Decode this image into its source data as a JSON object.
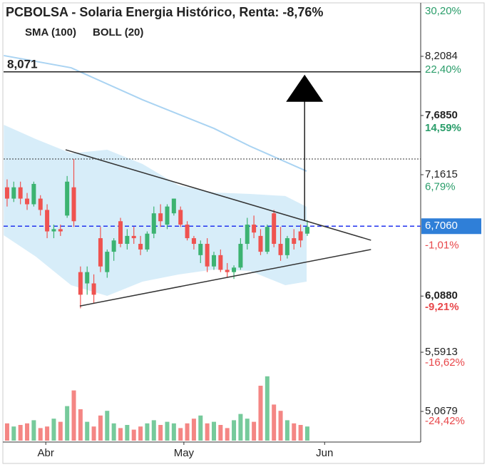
{
  "chart_data": {
    "type": "candlestick",
    "title": "PCBOLSA - Solaria Energia Histórico, Renta: -8,76%",
    "x": [
      0,
      1,
      2,
      3,
      4,
      5,
      6,
      7,
      8,
      9,
      10,
      11,
      12,
      13,
      14,
      15,
      16,
      17,
      18,
      19,
      20,
      21,
      22,
      23,
      24,
      25,
      26,
      27,
      28,
      29,
      30,
      31,
      32,
      33,
      34,
      35,
      36,
      37,
      38,
      39,
      40,
      41,
      42,
      43,
      44,
      45
    ],
    "open": [
      7.05,
      6.95,
      7.05,
      6.95,
      6.9,
      6.95,
      6.85,
      6.66,
      6.68,
      6.8,
      7.05,
      6.3,
      6.2,
      6.2,
      6.6,
      6.3,
      6.48,
      6.75,
      6.55,
      6.62,
      6.55,
      6.5,
      6.64,
      6.82,
      6.72,
      6.82,
      6.85,
      6.72,
      6.6,
      6.45,
      6.55,
      6.35,
      6.45,
      6.32,
      6.3,
      6.34,
      6.55,
      6.72,
      6.62,
      6.48,
      6.82,
      6.55,
      6.45,
      6.6,
      6.66,
      6.64
    ],
    "high": [
      7.12,
      7.1,
      7.1,
      7.0,
      7.1,
      6.98,
      6.9,
      6.72,
      6.72,
      7.15,
      7.3,
      6.35,
      6.35,
      6.28,
      6.7,
      6.5,
      6.6,
      6.78,
      6.68,
      6.7,
      6.62,
      6.66,
      6.88,
      6.9,
      6.9,
      6.95,
      6.88,
      6.75,
      6.62,
      6.58,
      6.6,
      6.48,
      6.5,
      6.38,
      6.36,
      6.6,
      6.78,
      6.8,
      6.68,
      6.72,
      6.85,
      6.7,
      6.62,
      6.68,
      6.72,
      6.76
    ],
    "low": [
      6.88,
      6.92,
      6.9,
      6.85,
      6.88,
      6.8,
      6.6,
      6.6,
      6.62,
      6.78,
      6.7,
      5.98,
      6.1,
      6.02,
      6.3,
      6.25,
      6.4,
      6.52,
      6.5,
      6.55,
      6.45,
      6.48,
      6.6,
      6.7,
      6.68,
      6.8,
      6.7,
      6.58,
      6.5,
      6.38,
      6.3,
      6.32,
      6.3,
      6.25,
      6.24,
      6.32,
      6.5,
      6.6,
      6.45,
      6.46,
      6.52,
      6.4,
      6.42,
      6.5,
      6.52,
      6.62
    ],
    "close": [
      6.95,
      7.05,
      6.95,
      6.9,
      7.08,
      6.85,
      6.66,
      6.68,
      6.66,
      7.1,
      6.75,
      6.1,
      6.3,
      6.1,
      6.35,
      6.48,
      6.58,
      6.55,
      6.62,
      6.6,
      6.5,
      6.64,
      6.82,
      6.75,
      6.88,
      6.95,
      6.72,
      6.6,
      6.55,
      6.55,
      6.35,
      6.45,
      6.32,
      6.3,
      6.34,
      6.55,
      6.72,
      6.65,
      6.48,
      6.7,
      6.55,
      6.45,
      6.6,
      6.55,
      6.58,
      6.7
    ],
    "up_color": "#3cb371",
    "down_color": "#ef5350",
    "volume": {
      "values": [
        22,
        18,
        20,
        22,
        26,
        16,
        18,
        28,
        24,
        44,
        64,
        40,
        24,
        18,
        32,
        38,
        22,
        16,
        20,
        14,
        18,
        22,
        26,
        20,
        24,
        22,
        16,
        22,
        28,
        32,
        22,
        24,
        20,
        16,
        26,
        34,
        28,
        24,
        70,
        82,
        46,
        38,
        26,
        22,
        20,
        18
      ],
      "ylim": [
        0,
        100
      ]
    },
    "sma": {
      "name": "SMA (100)",
      "color": "#a9d3f2",
      "x": [
        -0.5,
        9.6,
        20.3,
        31,
        36.4,
        44.9
      ],
      "values": [
        8.215,
        8.107,
        7.824,
        7.571,
        7.414,
        7.193
      ]
    },
    "boll": {
      "name": "BOLL (20)",
      "color": "#cde8f8",
      "legend_color": "#cccccc",
      "x": [
        -0.5,
        4.3,
        9.6,
        15,
        20.3,
        25.7,
        31,
        36.4,
        41.7,
        44.9
      ],
      "upper": [
        7.603,
        7.477,
        7.351,
        7.382,
        7.256,
        7.067,
        7.004,
        6.991,
        6.973,
        6.878
      ],
      "lower": [
        6.626,
        6.437,
        6.184,
        6.09,
        6.216,
        6.279,
        6.323,
        6.311,
        6.184,
        6.216
      ]
    },
    "trend_lines": [
      {
        "x": [
          8.77,
          54.55
        ],
        "values": [
          7.382,
          6.582
        ]
      },
      {
        "x": [
          10.9,
          54.55
        ],
        "values": [
          6.0,
          6.5
        ]
      }
    ],
    "arrow": {
      "x": 44.6,
      "values": [
        6.752,
        8.071
      ]
    },
    "level": {
      "value": 8.071,
      "label": "8,071"
    },
    "dotted_level": 7.3,
    "last_price": {
      "value": 6.706,
      "label": "6,7060"
    },
    "xlim": [
      -0.53,
      62.0
    ],
    "ylim": [
      4.797,
      8.675
    ],
    "y2lim": [
      -27.17,
      31.23
    ],
    "xticks": [
      {
        "value": 5.8,
        "label": "Abr"
      },
      {
        "value": 26.5,
        "label": "May"
      },
      {
        "value": 47.6,
        "label": "Jun"
      }
    ],
    "yticks": [
      {
        "value": 8.2084,
        "label": "8,2084"
      },
      {
        "value": 7.685,
        "label": "7,6850"
      },
      {
        "value": 7.1615,
        "label": "7,1615"
      },
      {
        "value": 6.088,
        "label": "6,0880"
      },
      {
        "value": 5.5913,
        "label": "5,5913"
      },
      {
        "value": 5.0679,
        "label": "5,0679"
      }
    ],
    "y2ticks": [
      {
        "value": 30.2,
        "label": "30,20%"
      },
      {
        "value": 22.4,
        "label": "22,40%"
      },
      {
        "value": 14.59,
        "label": "14,59%"
      },
      {
        "value": 6.79,
        "label": "6,79%"
      },
      {
        "value": -1.01,
        "label": "-1,01%"
      },
      {
        "value": -9.21,
        "label": "-9,21%"
      },
      {
        "value": -16.62,
        "label": "-16,62%"
      },
      {
        "value": -24.42,
        "label": "-24,42%"
      }
    ]
  }
}
